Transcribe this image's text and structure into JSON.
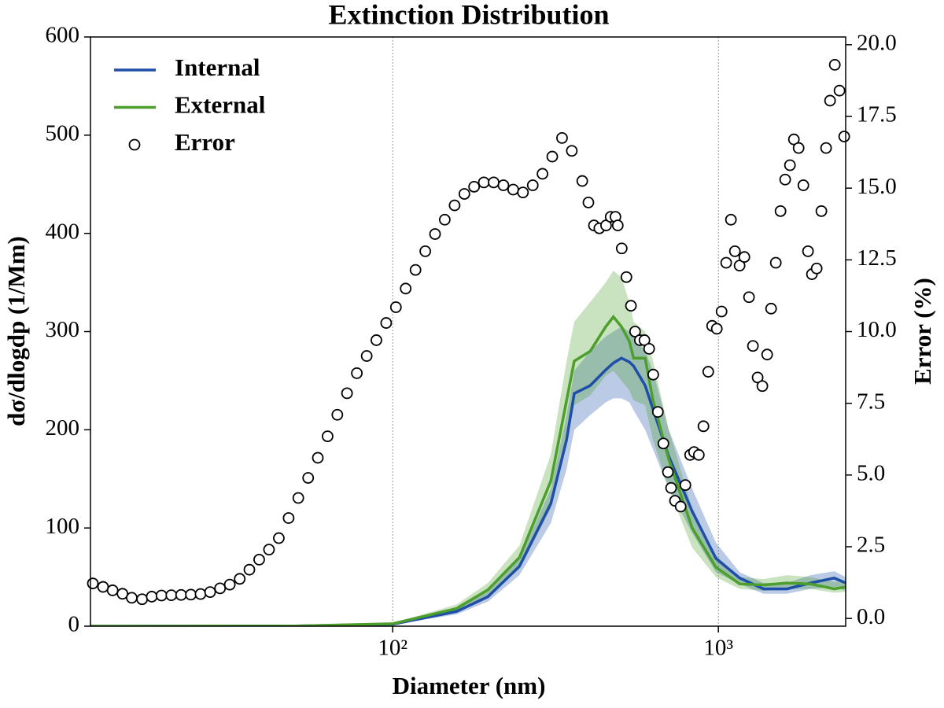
{
  "chart_data": {
    "type": "line",
    "title": "Extinction Distribution",
    "xlabel": "Diameter (nm)",
    "ylabel": "dσ/dlogdp (1/Mm)",
    "y2label": "Error (%)",
    "xscale": "log",
    "xlim": [
      11.8,
      2460
    ],
    "xticks": [
      {
        "value": 100,
        "label": "10²"
      },
      {
        "value": 1000,
        "label": "10³"
      }
    ],
    "ylim": [
      0,
      600
    ],
    "yticks": [
      0,
      100,
      200,
      300,
      400,
      500,
      600
    ],
    "y2lim": [
      -0.27,
      20.27
    ],
    "y2ticks": [
      {
        "value": 0,
        "label": "0.0"
      },
      2.5,
      {
        "value": 5,
        "label": "5.0"
      },
      7.5,
      {
        "value": 10,
        "label": "10.0"
      },
      12.5,
      {
        "value": 15,
        "label": "15.0"
      },
      17.5,
      {
        "value": 20,
        "label": "20.0"
      }
    ],
    "grid": true,
    "legend": "upper left",
    "series": [
      {
        "name": "Internal",
        "color": "#1f4ea8",
        "x": [
          11.8,
          50,
          100,
          157,
          196,
          245,
          306,
          342,
          361,
          404,
          451,
          476,
          504,
          533,
          549,
          596,
          630,
          704,
          831,
          983,
          1163,
          1376,
          1623,
          1920,
          2270,
          2460
        ],
        "values": [
          0,
          0.2,
          2,
          15,
          30,
          61,
          125,
          190,
          237,
          245,
          261,
          268,
          273,
          269,
          265,
          245,
          221,
          173,
          117,
          69,
          49,
          38,
          38,
          44,
          49,
          44
        ],
        "lower": [
          0,
          0.2,
          1.5,
          12,
          25,
          52,
          105,
          160,
          200,
          215,
          228,
          232,
          232,
          228,
          220,
          200,
          180,
          140,
          95,
          55,
          43,
          33,
          33,
          38,
          40,
          36
        ],
        "upper": [
          0,
          0.2,
          2.5,
          18,
          35,
          68,
          140,
          215,
          260,
          280,
          295,
          300,
          305,
          300,
          295,
          280,
          260,
          200,
          140,
          85,
          55,
          44,
          44,
          52,
          56,
          50
        ]
      },
      {
        "name": "External",
        "color": "#4c9f2c",
        "x": [
          11.8,
          50,
          100,
          157,
          196,
          245,
          306,
          342,
          361,
          404,
          451,
          476,
          504,
          533,
          549,
          596,
          630,
          704,
          831,
          983,
          1163,
          1376,
          1623,
          1920,
          2270,
          2460
        ],
        "values": [
          0,
          0.2,
          2.5,
          18,
          37,
          70,
          148,
          230,
          270,
          280,
          305,
          315,
          305,
          290,
          273,
          273,
          230,
          170,
          100,
          60,
          43,
          42,
          44,
          43,
          38,
          40
        ],
        "lower": [
          0,
          0.2,
          2,
          14,
          30,
          58,
          120,
          190,
          225,
          235,
          255,
          260,
          250,
          240,
          230,
          225,
          190,
          140,
          80,
          50,
          38,
          36,
          38,
          38,
          34,
          35
        ],
        "upper": [
          0,
          0.3,
          3,
          22,
          44,
          82,
          175,
          270,
          310,
          330,
          350,
          362,
          355,
          330,
          310,
          300,
          270,
          200,
          120,
          72,
          50,
          48,
          52,
          50,
          45,
          46
        ]
      },
      {
        "name": "Error",
        "color": "#000000",
        "marker": "o",
        "axis": "y2",
        "x": [
          12.0,
          12.9,
          13.8,
          14.8,
          15.8,
          17.0,
          18.2,
          19.5,
          20.9,
          22.4,
          24.0,
          25.7,
          27.5,
          29.5,
          31.6,
          33.9,
          36.3,
          38.9,
          41.7,
          44.7,
          47.9,
          51.3,
          55.0,
          58.9,
          63.1,
          67.6,
          72.4,
          77.6,
          83.2,
          89.1,
          95.5,
          102.3,
          109.6,
          117.5,
          125.9,
          134.9,
          144.5,
          154.9,
          166.0,
          177.8,
          190.5,
          204.2,
          218.8,
          234.4,
          251.2,
          269.2,
          288.4,
          309.0,
          331.1,
          354.8,
          382,
          399,
          415,
          431,
          452,
          467,
          483,
          491,
          505,
          522,
          539,
          555,
          574,
          593,
          613,
          631,
          652,
          678,
          700,
          716,
          736,
          766,
          792,
          819,
          842,
          871,
          900,
          931,
          957,
          989,
          1023,
          1057,
          1093,
          1124,
          1162,
          1202,
          1242,
          1277,
          1320,
          1365,
          1412,
          1452,
          1501,
          1552,
          1604,
          1659,
          1706,
          1764,
          1824,
          1885,
          1938,
          2004,
          2072,
          2142,
          2203,
          2278,
          2355,
          2435
        ],
        "values": [
          1.22,
          1.1,
          0.98,
          0.86,
          0.72,
          0.67,
          0.76,
          0.8,
          0.81,
          0.82,
          0.83,
          0.85,
          0.92,
          1.05,
          1.18,
          1.38,
          1.7,
          2.05,
          2.4,
          2.8,
          3.5,
          4.2,
          4.9,
          5.6,
          6.35,
          7.1,
          7.85,
          8.55,
          9.15,
          9.7,
          10.3,
          10.85,
          11.5,
          12.15,
          12.8,
          13.4,
          13.9,
          14.4,
          14.8,
          15.05,
          15.2,
          15.2,
          15.1,
          14.95,
          14.85,
          15.1,
          15.5,
          16.1,
          16.75,
          16.3,
          15.25,
          14.5,
          13.7,
          13.6,
          13.7,
          14.0,
          14.0,
          13.7,
          12.9,
          11.9,
          10.9,
          10.0,
          9.7,
          9.7,
          9.4,
          8.5,
          7.2,
          6.1,
          5.1,
          4.55,
          4.1,
          3.9,
          4.65,
          5.7,
          5.8,
          5.7,
          6.7,
          8.6,
          10.2,
          10.1,
          10.7,
          12.4,
          13.9,
          12.8,
          12.3,
          12.6,
          11.2,
          9.5,
          8.4,
          8.1,
          9.2,
          10.8,
          12.4,
          14.2,
          15.3,
          15.8,
          16.7,
          16.4,
          15.1,
          12.8,
          12.0,
          12.2,
          14.2,
          16.4,
          18.05,
          19.3,
          18.4,
          16.8
        ]
      }
    ]
  }
}
